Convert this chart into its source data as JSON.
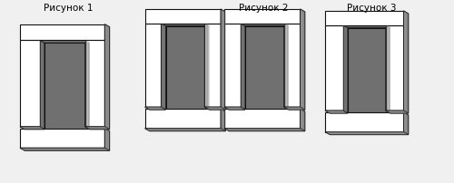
{
  "labels": [
    "Рисунок 1",
    "Рисунок 2",
    "Рисунок 3"
  ],
  "bg_color": "#f0f0f0",
  "face_white": "#ffffff",
  "face_top": "#e0e0e0",
  "face_side": "#b8b8b8",
  "face_inner": "#888888",
  "face_inner2": "#707070",
  "edge_color": "#111111",
  "lam_color": "#666666",
  "font_size": 7.5,
  "fig_width": 5.0,
  "fig_height": 2.02
}
